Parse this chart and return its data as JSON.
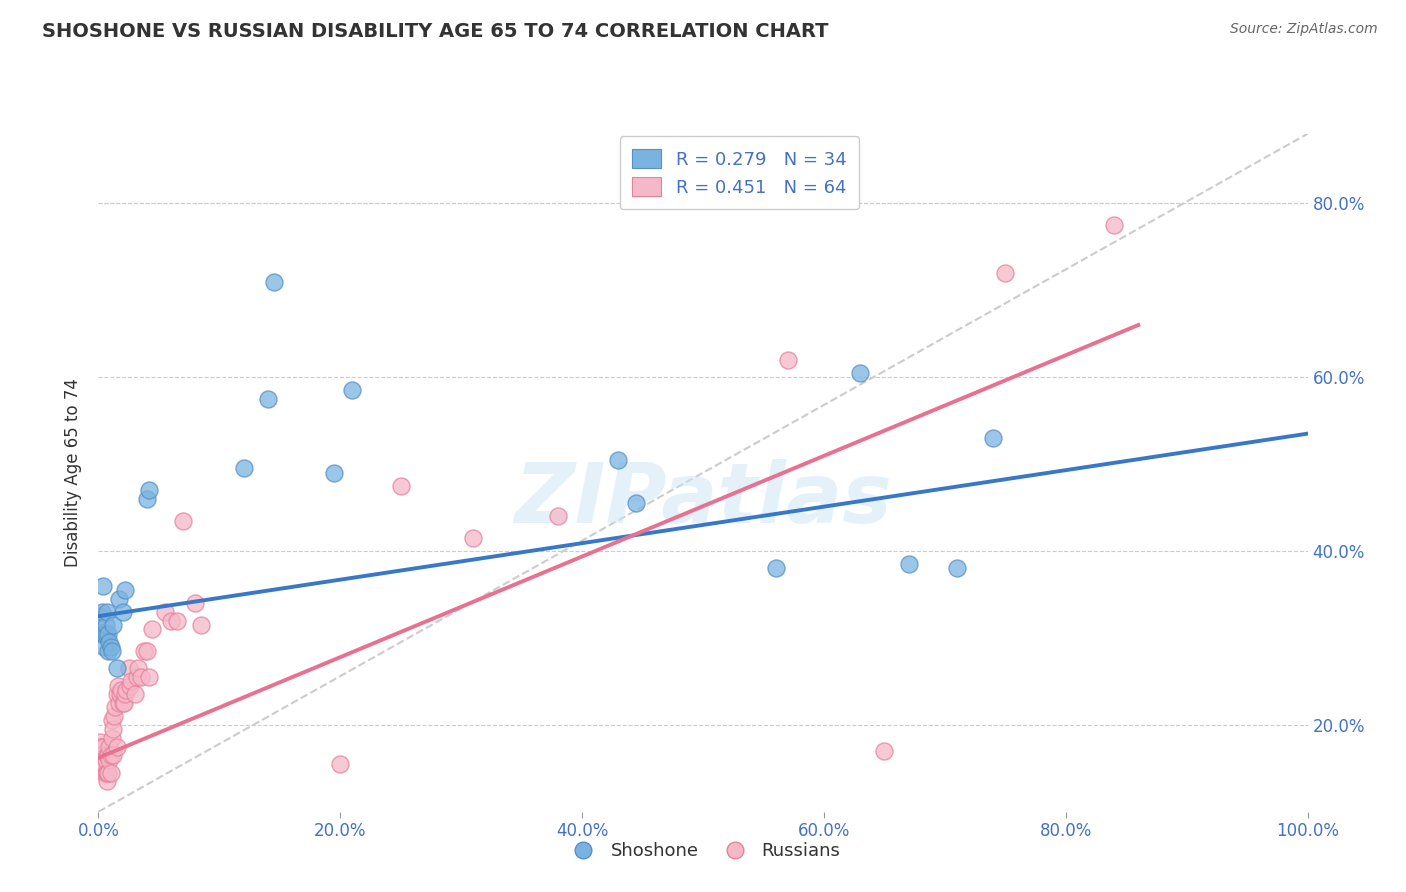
{
  "title": "SHOSHONE VS RUSSIAN DISABILITY AGE 65 TO 74 CORRELATION CHART",
  "source": "Source: ZipAtlas.com",
  "ylabel": "Disability Age 65 to 74",
  "xlim": [
    0,
    1.0
  ],
  "ylim": [
    0.1,
    0.88
  ],
  "xticks": [
    0.0,
    0.2,
    0.4,
    0.6,
    0.8,
    1.0
  ],
  "yticks": [
    0.2,
    0.4,
    0.6,
    0.8
  ],
  "xtick_labels": [
    "0.0%",
    "20.0%",
    "40.0%",
    "60.0%",
    "80.0%",
    "100.0%"
  ],
  "ytick_labels": [
    "20.0%",
    "40.0%",
    "60.0%",
    "80.0%"
  ],
  "shoshone_color": "#7ab3e0",
  "shoshone_edge": "#5590c8",
  "russian_color": "#f5b8c8",
  "russian_edge": "#e8809a",
  "shoshone_R": 0.279,
  "shoshone_N": 34,
  "russian_R": 0.451,
  "russian_N": 64,
  "blue_line_color": "#3878c8",
  "pink_line_color": "#e87090",
  "ref_line_color": "#cccccc",
  "watermark": "ZIPatlas",
  "legend_labels": [
    "Shoshone",
    "Russians"
  ],
  "shoshone_x": [
    0.001,
    0.002,
    0.003,
    0.004,
    0.004,
    0.005,
    0.005,
    0.006,
    0.006,
    0.007,
    0.008,
    0.008,
    0.009,
    0.01,
    0.011,
    0.012,
    0.015,
    0.017,
    0.02,
    0.022,
    0.04,
    0.042,
    0.12,
    0.14,
    0.145,
    0.195,
    0.21,
    0.43,
    0.445,
    0.56,
    0.63,
    0.67,
    0.71,
    0.74
  ],
  "shoshone_y": [
    0.325,
    0.305,
    0.33,
    0.305,
    0.36,
    0.29,
    0.305,
    0.305,
    0.315,
    0.33,
    0.285,
    0.305,
    0.295,
    0.29,
    0.285,
    0.315,
    0.265,
    0.345,
    0.33,
    0.355,
    0.46,
    0.47,
    0.495,
    0.575,
    0.71,
    0.49,
    0.585,
    0.505,
    0.455,
    0.38,
    0.605,
    0.385,
    0.38,
    0.53
  ],
  "russian_x": [
    0.001,
    0.001,
    0.002,
    0.002,
    0.003,
    0.003,
    0.004,
    0.004,
    0.004,
    0.005,
    0.005,
    0.005,
    0.006,
    0.006,
    0.007,
    0.007,
    0.007,
    0.008,
    0.008,
    0.009,
    0.009,
    0.01,
    0.01,
    0.011,
    0.011,
    0.012,
    0.012,
    0.013,
    0.014,
    0.015,
    0.015,
    0.016,
    0.017,
    0.018,
    0.019,
    0.02,
    0.021,
    0.022,
    0.023,
    0.025,
    0.026,
    0.027,
    0.03,
    0.032,
    0.033,
    0.035,
    0.038,
    0.04,
    0.042,
    0.044,
    0.055,
    0.06,
    0.065,
    0.07,
    0.08,
    0.085,
    0.2,
    0.25,
    0.31,
    0.38,
    0.57,
    0.65,
    0.75,
    0.84
  ],
  "russian_y": [
    0.175,
    0.18,
    0.165,
    0.175,
    0.155,
    0.165,
    0.155,
    0.16,
    0.175,
    0.145,
    0.15,
    0.155,
    0.145,
    0.16,
    0.135,
    0.145,
    0.165,
    0.145,
    0.165,
    0.16,
    0.175,
    0.145,
    0.165,
    0.185,
    0.205,
    0.165,
    0.195,
    0.21,
    0.22,
    0.175,
    0.235,
    0.245,
    0.225,
    0.235,
    0.24,
    0.225,
    0.225,
    0.235,
    0.24,
    0.265,
    0.245,
    0.25,
    0.235,
    0.255,
    0.265,
    0.255,
    0.285,
    0.285,
    0.255,
    0.31,
    0.33,
    0.32,
    0.32,
    0.435,
    0.34,
    0.315,
    0.155,
    0.475,
    0.415,
    0.44,
    0.62,
    0.17,
    0.72,
    0.775
  ],
  "blue_line_x": [
    0.0,
    1.0
  ],
  "blue_line_y": [
    0.325,
    0.535
  ],
  "pink_line_x": [
    0.0,
    0.86
  ],
  "pink_line_y": [
    0.162,
    0.66
  ],
  "ref_line_x": [
    0.0,
    1.0
  ],
  "ref_line_y": [
    0.1,
    0.88
  ]
}
